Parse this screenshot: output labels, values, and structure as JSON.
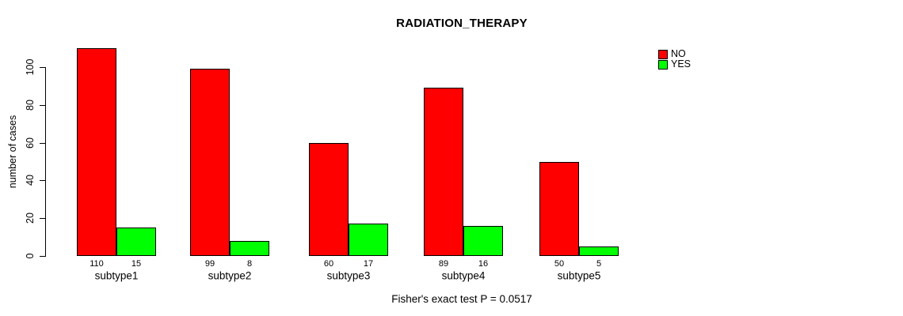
{
  "title": "RADIATION_THERAPY",
  "footnote": "Fisher's exact test P = 0.0517",
  "legend": {
    "items": [
      {
        "label": "NO",
        "color": "#ff0000"
      },
      {
        "label": "YES",
        "color": "#00ff00"
      }
    ]
  },
  "chart_data": {
    "type": "bar",
    "title": "RADIATION_THERAPY",
    "subtitle": "",
    "xlabel": "",
    "ylabel": "number of cases",
    "categories": [
      "subtype1",
      "subtype2",
      "subtype3",
      "subtype4",
      "subtype5"
    ],
    "series": [
      {
        "name": "NO",
        "color": "#ff0000",
        "values": [
          110,
          99,
          60,
          89,
          50
        ]
      },
      {
        "name": "YES",
        "color": "#00ff00",
        "values": [
          15,
          8,
          17,
          16,
          5
        ]
      }
    ],
    "bar_value_labels": [
      [
        "110",
        "15"
      ],
      [
        "99",
        "8"
      ],
      [
        "60",
        "17"
      ],
      [
        "89",
        "16"
      ],
      [
        "50",
        "5"
      ]
    ],
    "yticks": [
      0,
      20,
      40,
      60,
      80,
      100
    ],
    "ylim": [
      0,
      110
    ],
    "grid": false,
    "legend_position": "top-right",
    "annotation": "Fisher's exact test P = 0.0517"
  }
}
